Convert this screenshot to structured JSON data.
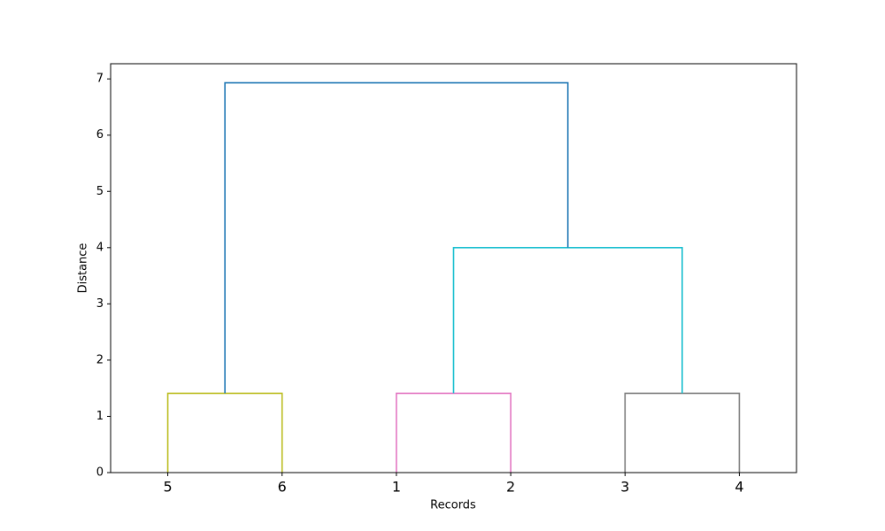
{
  "chart_data": {
    "type": "dendrogram",
    "x_label": "Records",
    "y_label": "Distance",
    "categories": [
      "5",
      "6",
      "1",
      "2",
      "3",
      "4"
    ],
    "xlim": [
      0,
      60
    ],
    "ylim": [
      0,
      7.27
    ],
    "yticks": [
      0,
      1,
      2,
      3,
      4,
      5,
      6,
      7
    ],
    "links": [
      {
        "x": [
          5,
          5,
          15,
          15
        ],
        "y": [
          0,
          1.41,
          1.41,
          0
        ],
        "color": "#bcbd22"
      },
      {
        "x": [
          25,
          25,
          35,
          35
        ],
        "y": [
          0,
          1.41,
          1.41,
          0
        ],
        "color": "#e377c2"
      },
      {
        "x": [
          45,
          45,
          55,
          55
        ],
        "y": [
          0,
          1.41,
          1.41,
          0
        ],
        "color": "#7f7f7f"
      },
      {
        "x": [
          30,
          30,
          50,
          50
        ],
        "y": [
          1.41,
          4,
          4,
          1.41
        ],
        "color": "#17becf"
      },
      {
        "x": [
          10,
          10,
          40,
          40
        ],
        "y": [
          1.41,
          6.93,
          6.93,
          4
        ],
        "color": "#1f77b4"
      }
    ]
  }
}
